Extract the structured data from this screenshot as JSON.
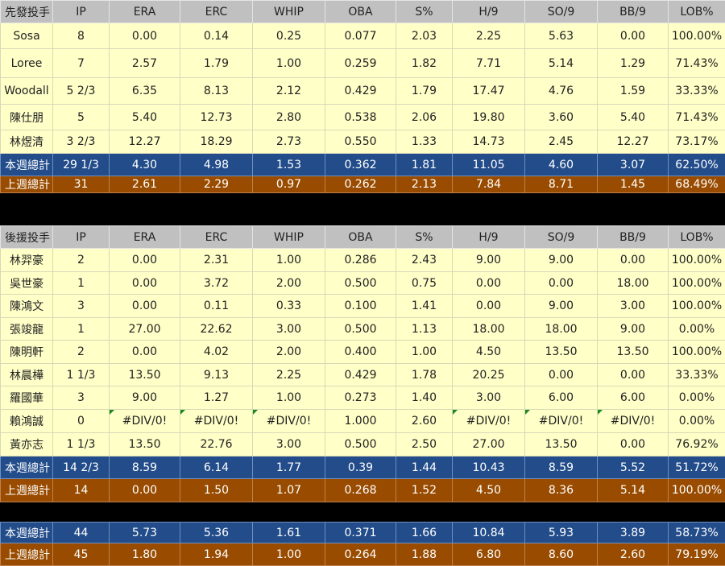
{
  "columns": [
    "IP",
    "ERA",
    "ERC",
    "WHIP",
    "OBA",
    "S%",
    "H/9",
    "SO/9",
    "BB/9",
    "LOB%"
  ],
  "starters": {
    "header": "先發投手",
    "rows": [
      [
        "Sosa",
        "8",
        "0.00",
        "0.14",
        "0.25",
        "0.077",
        "2.03",
        "2.25",
        "5.63",
        "0.00",
        "100.00%"
      ],
      [
        "Loree",
        "7",
        "2.57",
        "1.79",
        "1.00",
        "0.259",
        "1.82",
        "7.71",
        "5.14",
        "1.29",
        "71.43%"
      ],
      [
        "Woodall",
        "5 2/3",
        "6.35",
        "8.13",
        "2.12",
        "0.429",
        "1.79",
        "17.47",
        "4.76",
        "1.59",
        "33.33%"
      ],
      [
        "陳仕朋",
        "5",
        "5.40",
        "12.73",
        "2.80",
        "0.538",
        "2.06",
        "19.80",
        "3.60",
        "5.40",
        "71.43%"
      ],
      [
        "林煜清",
        "3 2/3",
        "12.27",
        "18.29",
        "2.73",
        "0.550",
        "1.33",
        "14.73",
        "2.45",
        "12.27",
        "73.17%"
      ]
    ],
    "this_week": [
      "本週總計",
      "29 1/3",
      "4.30",
      "4.98",
      "1.53",
      "0.362",
      "1.81",
      "11.05",
      "4.60",
      "3.07",
      "62.50%"
    ],
    "last_week": [
      "上週總計",
      "31",
      "2.61",
      "2.29",
      "0.97",
      "0.262",
      "2.13",
      "7.84",
      "8.71",
      "1.45",
      "68.49%"
    ]
  },
  "relievers": {
    "header": "後援投手",
    "rows": [
      [
        "林羿豪",
        "2",
        "0.00",
        "2.31",
        "1.00",
        "0.286",
        "2.43",
        "9.00",
        "9.00",
        "0.00",
        "100.00%"
      ],
      [
        "吳世豪",
        "1",
        "0.00",
        "3.72",
        "2.00",
        "0.500",
        "0.75",
        "0.00",
        "0.00",
        "18.00",
        "100.00%"
      ],
      [
        "陳鴻文",
        "3",
        "0.00",
        "0.11",
        "0.33",
        "0.100",
        "1.41",
        "0.00",
        "9.00",
        "3.00",
        "100.00%"
      ],
      [
        "張竣龍",
        "1",
        "27.00",
        "22.62",
        "3.00",
        "0.500",
        "1.13",
        "18.00",
        "18.00",
        "9.00",
        "0.00%"
      ],
      [
        "陳明軒",
        "2",
        "0.00",
        "4.02",
        "2.00",
        "0.400",
        "1.00",
        "4.50",
        "13.50",
        "13.50",
        "100.00%"
      ],
      [
        "林晨樺",
        "1 1/3",
        "13.50",
        "9.13",
        "2.25",
        "0.429",
        "1.78",
        "20.25",
        "0.00",
        "0.00",
        "33.33%"
      ],
      [
        "羅國華",
        "3",
        "9.00",
        "1.27",
        "1.00",
        "0.273",
        "1.40",
        "3.00",
        "6.00",
        "6.00",
        "0.00%"
      ],
      [
        "賴鴻誠",
        "0",
        "#DIV/0!",
        "#DIV/0!",
        "#DIV/0!",
        "1.000",
        "2.60",
        "#DIV/0!",
        "#DIV/0!",
        "#DIV/0!",
        "0.00%"
      ],
      [
        "黃亦志",
        "1 1/3",
        "13.50",
        "22.76",
        "3.00",
        "0.500",
        "2.50",
        "27.00",
        "13.50",
        "0.00",
        "76.92%"
      ]
    ],
    "this_week": [
      "本週總計",
      "14 2/3",
      "8.59",
      "6.14",
      "1.77",
      "0.39",
      "1.44",
      "10.43",
      "8.59",
      "5.52",
      "51.72%"
    ],
    "last_week": [
      "上週總計",
      "14",
      "0.00",
      "1.50",
      "1.07",
      "0.268",
      "1.52",
      "4.50",
      "8.36",
      "5.14",
      "100.00%"
    ]
  },
  "overall": {
    "this_week": [
      "本週總計",
      "44",
      "5.73",
      "5.36",
      "1.61",
      "0.371",
      "1.66",
      "10.84",
      "5.93",
      "3.89",
      "58.73%"
    ],
    "last_week": [
      "上週總計",
      "45",
      "1.80",
      "1.94",
      "1.00",
      "0.264",
      "1.88",
      "6.80",
      "8.60",
      "2.60",
      "79.19%"
    ]
  },
  "colors": {
    "header_bg": "#c0c0c0",
    "row_bg": "#ffffc8",
    "this_week_bg": "#224c8a",
    "last_week_bg": "#994c00",
    "separator": "#000000"
  }
}
